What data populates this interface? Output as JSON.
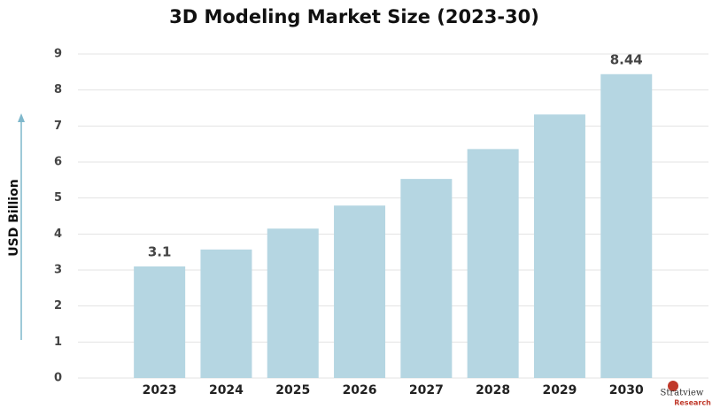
{
  "chart_data": {
    "type": "bar",
    "title": "3D Modeling Market Size (2023-30)",
    "y_label": "USD Billion",
    "categories": [
      "2023",
      "2024",
      "2025",
      "2026",
      "2027",
      "2028",
      "2029",
      "2030"
    ],
    "values": [
      3.1,
      3.57,
      4.15,
      4.79,
      5.53,
      6.36,
      7.32,
      8.44
    ],
    "color": "#b5d6e2",
    "ylim": [
      0,
      9
    ],
    "yticks": [
      0,
      1,
      2,
      3,
      4,
      5,
      6,
      7,
      8,
      9
    ],
    "grid": true,
    "logo_text": [
      "Stratview",
      "Research"
    ]
  }
}
